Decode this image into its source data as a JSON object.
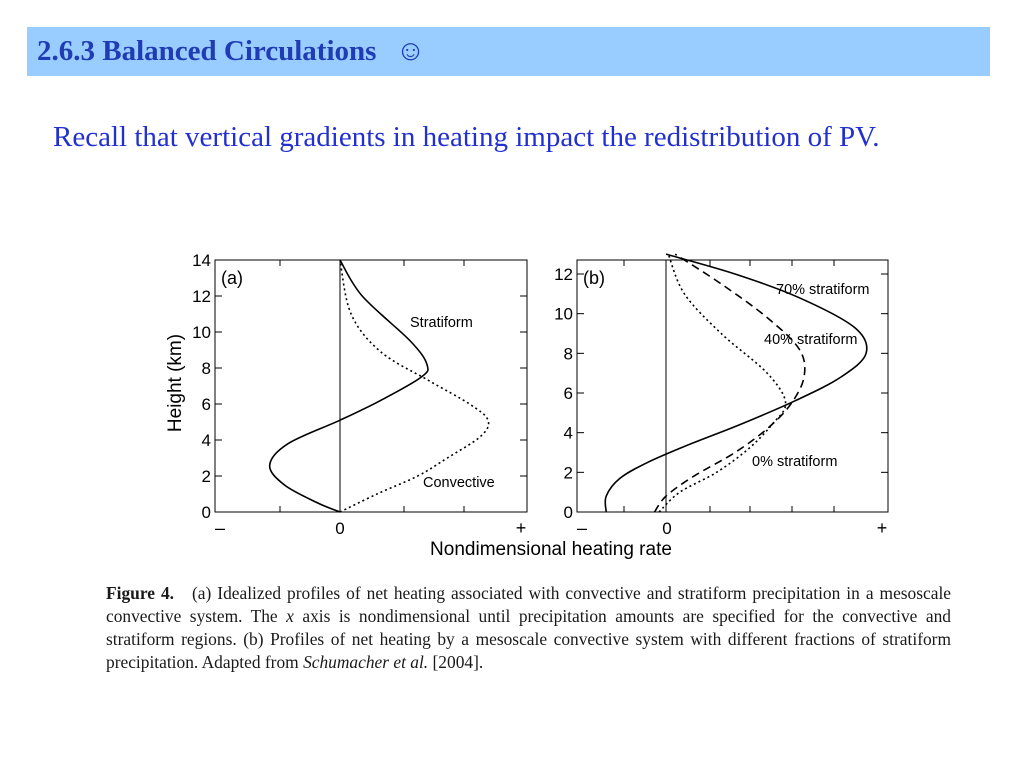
{
  "slide": {
    "title": "2.6.3 Balanced Circulations",
    "title_icon": "☺",
    "intro": "Recall that vertical gradients in heating impact the redistribution of PV."
  },
  "chart_data": [
    {
      "type": "line",
      "panel_label": "(a)",
      "ylabel": "Height (km)",
      "ylim": [
        0,
        14
      ],
      "yticks": [
        "0",
        "2",
        "4",
        "6",
        "8",
        "10",
        "12",
        "14"
      ],
      "xticks": [
        "–",
        "0",
        "+"
      ],
      "xlim": [
        -1,
        1
      ],
      "series": [
        {
          "name": "Stratiform",
          "style": "solid",
          "x": [
            0,
            -0.12,
            -0.3,
            -0.38,
            -0.28,
            0,
            0.22,
            0.44,
            0.47,
            0.38,
            0.12,
            0
          ],
          "y": [
            0,
            0.5,
            1.5,
            2.6,
            3.8,
            5.1,
            6.2,
            7.5,
            8.2,
            9.5,
            12.0,
            14.0
          ]
        },
        {
          "name": "Convective",
          "style": "dotted",
          "x": [
            0,
            0.2,
            0.42,
            0.58,
            0.76,
            0.8,
            0.7,
            0.48,
            0.22,
            0.06,
            0
          ],
          "y": [
            0,
            1.0,
            2.0,
            3.0,
            4.2,
            5.1,
            6.0,
            7.3,
            8.9,
            11.0,
            14.0
          ]
        }
      ]
    },
    {
      "type": "line",
      "panel_label": "(b)",
      "ylim": [
        0,
        13
      ],
      "yticks": [
        "0",
        "2",
        "4",
        "6",
        "8",
        "10",
        "12"
      ],
      "xticks": [
        "–",
        "0",
        "+"
      ],
      "xlim": [
        -1,
        1
      ],
      "xlabel": "Nondimensional heating rate",
      "series": [
        {
          "name": "70% stratiform",
          "style": "solid",
          "x": [
            -0.26,
            -0.26,
            -0.2,
            -0.08,
            0.1,
            0.32,
            0.56,
            0.76,
            0.87,
            0.82,
            0.58,
            0.3,
            0
          ],
          "y": [
            0,
            0.8,
            1.7,
            2.5,
            3.4,
            4.4,
            5.6,
            6.8,
            8.0,
            9.3,
            10.8,
            12.0,
            13.0
          ]
        },
        {
          "name": "40% stratiform",
          "style": "dashed",
          "x": [
            -0.05,
            0,
            0.12,
            0.3,
            0.44,
            0.54,
            0.6,
            0.58,
            0.44,
            0.24,
            0.04
          ],
          "y": [
            0,
            0.8,
            1.8,
            3.0,
            4.2,
            5.4,
            6.8,
            8.2,
            9.8,
            11.5,
            13.0
          ]
        },
        {
          "name": "0% stratiform",
          "style": "dotted",
          "x": [
            -0.03,
            0.06,
            0.22,
            0.36,
            0.46,
            0.52,
            0.44,
            0.24,
            0.08,
            0.01
          ],
          "y": [
            0,
            1.0,
            2.0,
            3.2,
            4.4,
            5.5,
            7.0,
            9.0,
            11.0,
            13.0
          ]
        }
      ]
    }
  ],
  "caption": {
    "label": "Figure 4.",
    "part1": "(a) Idealized profiles of net heating associated with convective and stratiform precipitation in a mesoscale convective system. The",
    "x_var": "x",
    "part2": "axis is nondimensional until precipitation amounts are specified for the convective and stratiform regions. (b) Profiles of net heating by a mesoscale convective system with different fractions of stratiform precipitation. Adapted from",
    "authors": "Schumacher et al.",
    "year": "[2004]."
  }
}
